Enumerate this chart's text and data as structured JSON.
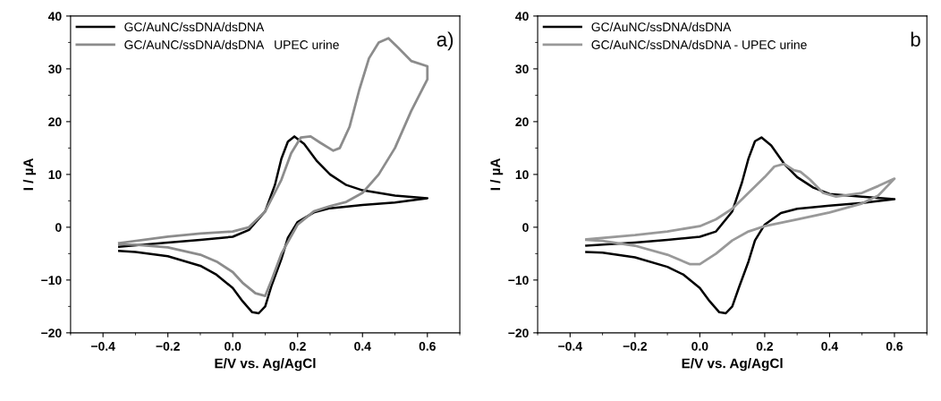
{
  "chart_data": [
    {
      "type": "line",
      "xlabel": "E/V vs. Ag/AgCl",
      "ylabel": "I / µA",
      "xlim": [
        -0.5,
        0.7
      ],
      "ylim": [
        -20,
        40
      ],
      "xticks": [
        -0.4,
        -0.2,
        {
          "value": 0,
          "label": "0.0"
        },
        0.2,
        0.4,
        0.6
      ],
      "yticks": [
        -20,
        -10,
        0,
        10,
        20,
        30,
        40
      ],
      "legend": "top left",
      "grid": false,
      "annotations": [
        {
          "text": "a)"
        }
      ],
      "series": [
        {
          "name": "GC/AuNC/ssDNA/dsDNA",
          "color": "#000000",
          "x": [
            -0.35,
            -0.2,
            -0.1,
            0.0,
            0.05,
            0.1,
            0.13,
            0.15,
            0.17,
            0.19,
            0.22,
            0.26,
            0.3,
            0.35,
            0.4,
            0.5,
            0.6,
            0.5,
            0.4,
            0.3,
            0.25,
            0.2,
            0.17,
            0.15,
            0.12,
            0.1,
            0.08,
            0.06,
            0.03,
            0.0,
            -0.05,
            -0.1,
            -0.2,
            -0.3,
            -0.35
          ],
          "values": [
            -3.7,
            -2.9,
            -2.4,
            -1.8,
            -0.5,
            3,
            8,
            13,
            16.2,
            17.2,
            15.8,
            12.5,
            10,
            8,
            7,
            6,
            5.5,
            4.7,
            4.2,
            3.6,
            2.8,
            1,
            -2,
            -6,
            -11,
            -15,
            -16.3,
            -16.1,
            -14,
            -11.5,
            -9,
            -7.3,
            -5.5,
            -4.7,
            -4.5
          ]
        },
        {
          "name": "GC/AuNC/ssDNA/dsDNA   UPEC urine",
          "color": "#8c8c8c",
          "x": [
            -0.35,
            -0.2,
            -0.1,
            0.0,
            0.05,
            0.1,
            0.15,
            0.18,
            0.21,
            0.24,
            0.27,
            0.31,
            0.33,
            0.36,
            0.39,
            0.42,
            0.45,
            0.48,
            0.51,
            0.55,
            0.6,
            0.6,
            0.55,
            0.5,
            0.45,
            0.4,
            0.35,
            0.3,
            0.25,
            0.2,
            0.15,
            0.12,
            0.1,
            0.07,
            0.03,
            0.0,
            -0.05,
            -0.1,
            -0.2,
            -0.3,
            -0.35
          ],
          "values": [
            -3,
            -1.8,
            -1.2,
            -0.8,
            0,
            3,
            9,
            14,
            17,
            17.2,
            16,
            14.5,
            15,
            19,
            26,
            32,
            35,
            35.8,
            34,
            31.5,
            30.5,
            28,
            22,
            15,
            10,
            6.5,
            4.8,
            4,
            3,
            0.5,
            -5,
            -10,
            -13,
            -12.5,
            -10.5,
            -8.5,
            -6.5,
            -5.2,
            -3.8,
            -3.3,
            -3.2
          ]
        }
      ]
    },
    {
      "type": "line",
      "xlabel": "E/V vs. Ag/AgCl",
      "ylabel": "I / µA",
      "xlim": [
        -0.5,
        0.7
      ],
      "ylim": [
        -20,
        40
      ],
      "xticks": [
        -0.4,
        -0.2,
        {
          "value": 0,
          "label": "0.0"
        },
        0.2,
        0.4,
        0.6
      ],
      "yticks": [
        -20,
        -10,
        0,
        10,
        20,
        30,
        40
      ],
      "legend": "top left",
      "grid": false,
      "annotations": [
        {
          "text": "b"
        }
      ],
      "series": [
        {
          "name": "GC/AuNC/ssDNA/dsDNA",
          "color": "#000000",
          "x": [
            -0.35,
            -0.2,
            -0.1,
            0.0,
            0.05,
            0.1,
            0.13,
            0.15,
            0.17,
            0.19,
            0.22,
            0.26,
            0.3,
            0.35,
            0.4,
            0.5,
            0.6,
            0.5,
            0.4,
            0.3,
            0.25,
            0.2,
            0.17,
            0.15,
            0.12,
            0.1,
            0.08,
            0.06,
            0.03,
            0.0,
            -0.05,
            -0.1,
            -0.2,
            -0.3,
            -0.35
          ],
          "values": [
            -3.5,
            -2.9,
            -2.4,
            -1.8,
            -0.8,
            3,
            8.5,
            13,
            16.3,
            17,
            15.5,
            12,
            9.5,
            7.5,
            6.3,
            5.8,
            5.3,
            4.6,
            4.1,
            3.5,
            2.7,
            0.5,
            -2.5,
            -6.5,
            -11.5,
            -15,
            -16.3,
            -16.1,
            -14,
            -11.5,
            -9,
            -7.5,
            -5.7,
            -4.8,
            -4.7
          ]
        },
        {
          "name": "GC/AuNC/ssDNA/dsDNA - UPEC urine",
          "color": "#999999",
          "x": [
            -0.35,
            -0.2,
            -0.1,
            0.0,
            0.05,
            0.1,
            0.15,
            0.2,
            0.23,
            0.26,
            0.29,
            0.31,
            0.34,
            0.38,
            0.42,
            0.5,
            0.55,
            0.6,
            0.55,
            0.5,
            0.4,
            0.3,
            0.2,
            0.15,
            0.1,
            0.05,
            0.0,
            -0.03,
            -0.1,
            -0.2,
            -0.3,
            -0.35
          ],
          "values": [
            -2.3,
            -1.5,
            -0.8,
            0.2,
            1.5,
            3.5,
            6.5,
            9.5,
            11.5,
            12,
            10.8,
            10.5,
            9,
            6.5,
            5.8,
            6.5,
            7.8,
            9.2,
            6,
            4.5,
            2.8,
            1.5,
            0.2,
            -0.8,
            -2.5,
            -5,
            -7,
            -7,
            -5.2,
            -3.5,
            -2.6,
            -2.4
          ]
        }
      ]
    }
  ]
}
